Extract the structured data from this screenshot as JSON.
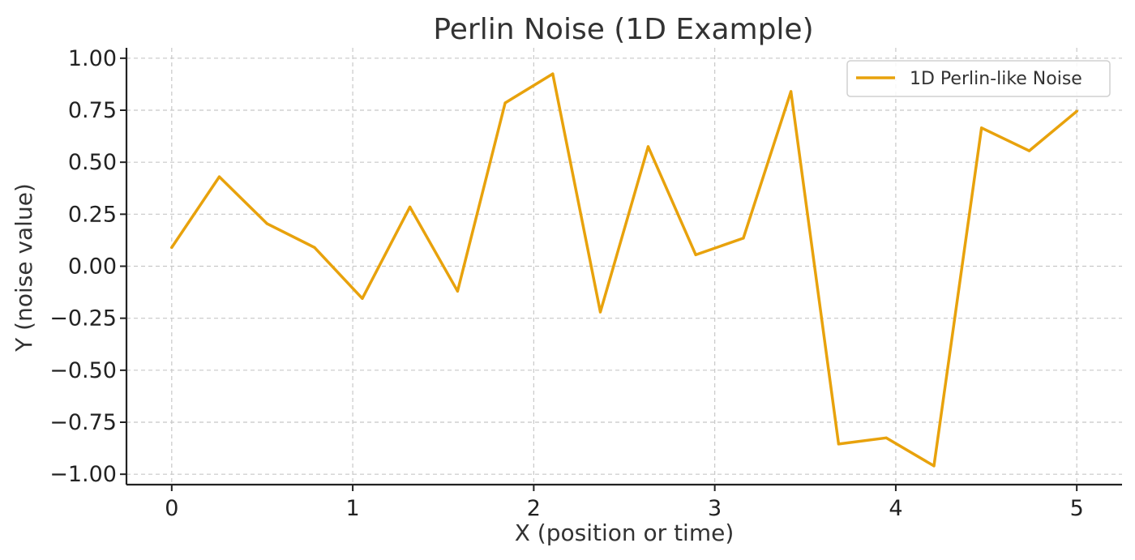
{
  "chart_data": {
    "type": "line",
    "title": "Perlin Noise (1D Example)",
    "xlabel": "X (position or time)",
    "ylabel": "Y (noise value)",
    "xlim": [
      -0.25,
      5.25
    ],
    "ylim": [
      -1.05,
      1.05
    ],
    "xticks": [
      0,
      1,
      2,
      3,
      4,
      5
    ],
    "xtick_labels": [
      "0",
      "1",
      "2",
      "3",
      "4",
      "5"
    ],
    "yticks": [
      -1.0,
      -0.75,
      -0.5,
      -0.25,
      0.0,
      0.25,
      0.5,
      0.75,
      1.0
    ],
    "ytick_labels": [
      "−1.00",
      "−0.75",
      "−0.50",
      "−0.25",
      "0.00",
      "0.25",
      "0.50",
      "0.75",
      "1.00"
    ],
    "grid": true,
    "legend_position": "top-right",
    "series": [
      {
        "name": "1D Perlin-like Noise",
        "color": "#E8A20C",
        "x": [
          0.0,
          0.263,
          0.526,
          0.789,
          1.053,
          1.316,
          1.579,
          1.842,
          2.105,
          2.368,
          2.632,
          2.895,
          3.158,
          3.421,
          3.684,
          3.947,
          4.211,
          4.474,
          4.737,
          5.0
        ],
        "y": [
          0.09,
          0.43,
          0.205,
          0.09,
          -0.155,
          0.285,
          -0.12,
          0.785,
          0.925,
          -0.22,
          0.575,
          0.055,
          0.135,
          0.84,
          -0.855,
          -0.825,
          -0.96,
          0.665,
          0.555,
          0.745
        ]
      }
    ]
  }
}
